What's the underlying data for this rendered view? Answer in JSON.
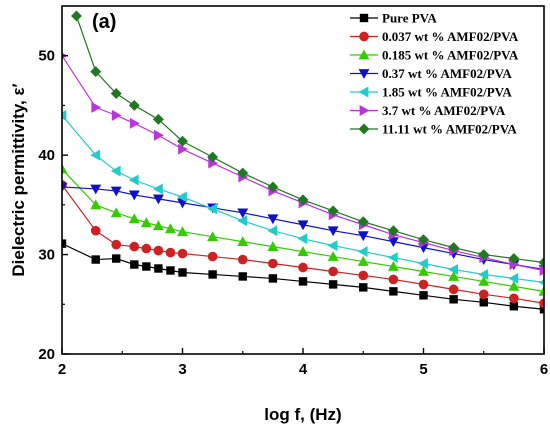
{
  "chart_data": {
    "type": "line",
    "panel_label": "(a)",
    "xlabel": "log f, (Hz)",
    "ylabel": "Dielectric permittivity, ε′",
    "xlim": [
      2,
      6
    ],
    "ylim": [
      20,
      55
    ],
    "x_ticks": [
      2,
      3,
      4,
      5,
      6
    ],
    "y_ticks": [
      20,
      30,
      40,
      50
    ],
    "grid": false,
    "legend_position": "top-right",
    "series": [
      {
        "name": "Pure PVA",
        "color": "#000000",
        "marker": "square",
        "x": [
          2.0,
          2.28,
          2.45,
          2.6,
          2.7,
          2.8,
          2.9,
          3.0,
          3.25,
          3.5,
          3.75,
          4.0,
          4.25,
          4.5,
          4.75,
          5.0,
          5.25,
          5.5,
          5.75,
          6.0
        ],
        "y": [
          31.1,
          29.5,
          29.6,
          29.0,
          28.8,
          28.6,
          28.4,
          28.2,
          28.0,
          27.8,
          27.6,
          27.3,
          27.0,
          26.7,
          26.3,
          25.9,
          25.5,
          25.2,
          24.8,
          24.5
        ]
      },
      {
        "name": "0.037 wt % AMF02/PVA",
        "color": "#cc2222",
        "marker": "circle",
        "x": [
          2.0,
          2.28,
          2.45,
          2.6,
          2.7,
          2.8,
          2.9,
          3.0,
          3.25,
          3.5,
          3.75,
          4.0,
          4.25,
          4.5,
          4.75,
          5.0,
          5.25,
          5.5,
          5.75,
          6.0
        ],
        "y": [
          37.0,
          32.4,
          31.0,
          30.8,
          30.6,
          30.4,
          30.2,
          30.1,
          29.8,
          29.5,
          29.1,
          28.7,
          28.3,
          27.9,
          27.5,
          27.0,
          26.5,
          26.0,
          25.6,
          25.1
        ]
      },
      {
        "name": "0.185 wt % AMF02/PVA",
        "color": "#33cc00",
        "marker": "triangle-up",
        "x": [
          2.0,
          2.28,
          2.45,
          2.6,
          2.7,
          2.8,
          2.9,
          3.0,
          3.25,
          3.5,
          3.75,
          4.0,
          4.25,
          4.5,
          4.75,
          5.0,
          5.25,
          5.5,
          5.75,
          6.0
        ],
        "y": [
          38.6,
          35.0,
          34.2,
          33.6,
          33.2,
          32.9,
          32.6,
          32.3,
          31.8,
          31.3,
          30.8,
          30.3,
          29.8,
          29.3,
          28.8,
          28.3,
          27.8,
          27.3,
          26.8,
          26.3
        ]
      },
      {
        "name": "0.37  wt % AMF02/PVA",
        "color": "#1010cc",
        "marker": "triangle-down",
        "x": [
          2.0,
          2.28,
          2.45,
          2.6,
          2.8,
          3.0,
          3.25,
          3.5,
          3.75,
          4.0,
          4.25,
          4.5,
          4.75,
          5.0,
          5.25,
          5.5,
          5.75,
          6.0
        ],
        "y": [
          36.8,
          36.6,
          36.4,
          36.0,
          35.6,
          35.2,
          34.7,
          34.2,
          33.6,
          33.0,
          32.4,
          31.9,
          31.3,
          30.7,
          30.1,
          29.5,
          29.0,
          28.5
        ]
      },
      {
        "name": "1.85  wt % AMF02/PVA",
        "color": "#22cccc",
        "marker": "triangle-left",
        "x": [
          2.0,
          2.28,
          2.45,
          2.6,
          2.8,
          3.0,
          3.25,
          3.5,
          3.75,
          4.0,
          4.25,
          4.5,
          4.75,
          5.0,
          5.25,
          5.5,
          5.75,
          6.0
        ],
        "y": [
          44.0,
          40.0,
          38.4,
          37.5,
          36.6,
          35.8,
          34.6,
          33.4,
          32.4,
          31.6,
          30.9,
          30.3,
          29.7,
          29.1,
          28.5,
          28.0,
          27.6,
          27.2
        ]
      },
      {
        "name": "3.7     wt % AMF02/PVA",
        "color": "#bb33dd",
        "marker": "triangle-right",
        "x": [
          2.0,
          2.28,
          2.45,
          2.6,
          2.8,
          3.0,
          3.25,
          3.5,
          3.75,
          4.0,
          4.25,
          4.5,
          4.75,
          5.0,
          5.25,
          5.5,
          5.75,
          6.0
        ],
        "y": [
          50.0,
          44.8,
          44.0,
          43.2,
          42.0,
          40.6,
          39.2,
          37.8,
          36.4,
          35.2,
          34.0,
          33.0,
          32.0,
          31.2,
          30.4,
          29.7,
          29.0,
          28.4
        ]
      },
      {
        "name": "11.11 wt % AMF02/PVA",
        "color": "#227722",
        "marker": "diamond",
        "x": [
          2.12,
          2.28,
          2.45,
          2.6,
          2.8,
          3.0,
          3.25,
          3.5,
          3.75,
          4.0,
          4.25,
          4.5,
          4.75,
          5.0,
          5.25,
          5.5,
          5.75,
          6.0
        ],
        "y": [
          54.0,
          48.4,
          46.2,
          45.0,
          43.6,
          41.4,
          39.8,
          38.2,
          36.8,
          35.5,
          34.4,
          33.3,
          32.4,
          31.5,
          30.7,
          30.0,
          29.6,
          29.2
        ]
      }
    ]
  }
}
